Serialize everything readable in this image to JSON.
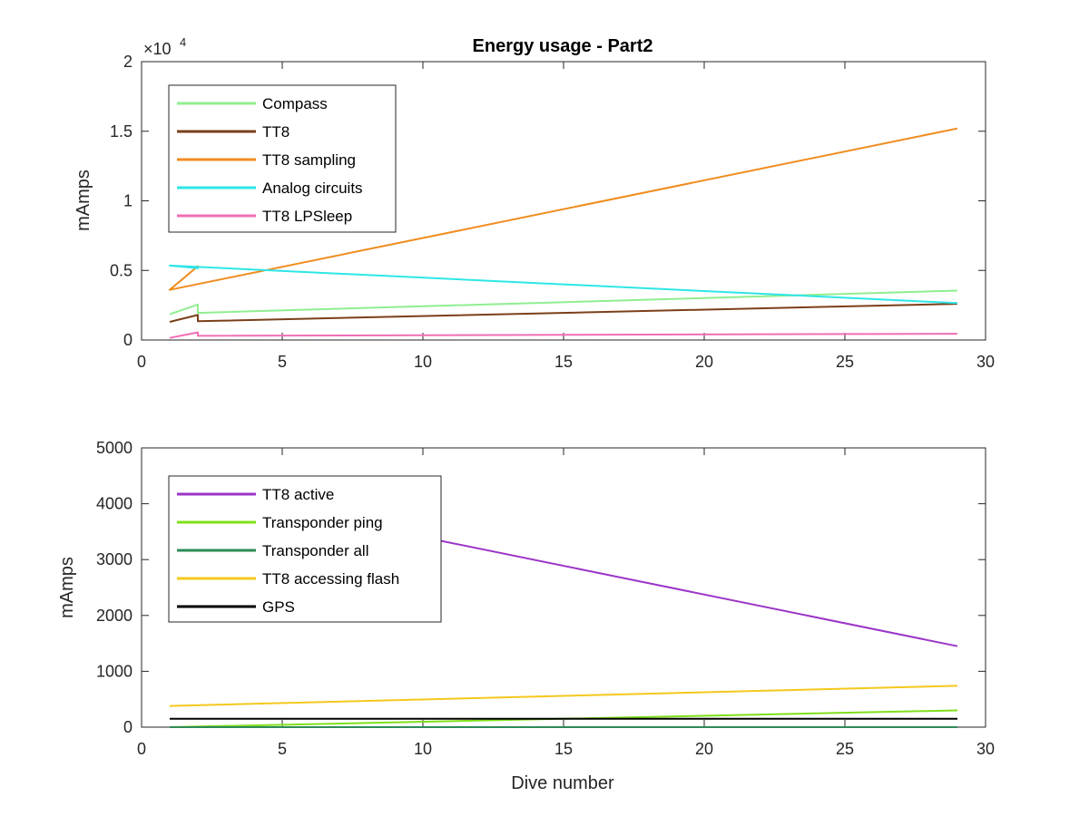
{
  "figure": {
    "title": "Energy usage - Part2",
    "xlabel": "Dive number",
    "exponent_label": "×10",
    "exponent_power": "4"
  },
  "chart_data": [
    {
      "type": "line",
      "title": "Energy usage - Part2",
      "xlabel": "",
      "ylabel": "mAmps",
      "xlim": [
        0,
        30
      ],
      "ylim": [
        0,
        20000
      ],
      "xticks": [
        0,
        5,
        10,
        15,
        20,
        25,
        30
      ],
      "xtick_labels": [
        "0",
        "5",
        "10",
        "15",
        "20",
        "25",
        "30"
      ],
      "yticks": [
        0,
        5000,
        10000,
        15000,
        20000
      ],
      "ytick_labels": [
        "0",
        "0.5",
        "1",
        "1.5",
        "2"
      ],
      "y_exponent": "×10^4",
      "grid": false,
      "legend_position": "top-left",
      "series": [
        {
          "name": "Compass",
          "color": "#90EE90",
          "points": [
            [
              1,
              1850
            ],
            [
              2,
              2550
            ],
            [
              2,
              1950
            ],
            [
              29,
              3550
            ]
          ]
        },
        {
          "name": "TT8",
          "color": "#7B3F1A",
          "points": [
            [
              1,
              1300
            ],
            [
              2,
              1800
            ],
            [
              2,
              1350
            ],
            [
              29,
              2600
            ]
          ]
        },
        {
          "name": "TT8 sampling",
          "color": "#F08C1E",
          "points": [
            [
              1,
              3600
            ],
            [
              2,
              5300
            ],
            [
              1,
              3600
            ],
            [
              29,
              15200
            ]
          ]
        },
        {
          "name": "Analog circuits",
          "color": "#2EE6E6",
          "points": [
            [
              1,
              5350
            ],
            [
              2,
              5150
            ],
            [
              1,
              5350
            ],
            [
              29,
              2650
            ]
          ]
        },
        {
          "name": "TT8 LPSleep",
          "color": "#F06EB4",
          "points": [
            [
              1,
              150
            ],
            [
              2,
              550
            ],
            [
              2,
              300
            ],
            [
              29,
              450
            ]
          ]
        }
      ]
    },
    {
      "type": "line",
      "title": "",
      "xlabel": "Dive number",
      "ylabel": "mAmps",
      "xlim": [
        0,
        30
      ],
      "ylim": [
        0,
        5000
      ],
      "xticks": [
        0,
        5,
        10,
        15,
        20,
        25,
        30
      ],
      "xtick_labels": [
        "0",
        "5",
        "10",
        "15",
        "20",
        "25",
        "30"
      ],
      "yticks": [
        0,
        1000,
        2000,
        3000,
        4000,
        5000
      ],
      "ytick_labels": [
        "0",
        "1000",
        "2000",
        "3000",
        "4000",
        "5000"
      ],
      "grid": false,
      "legend_position": "top-left",
      "series": [
        {
          "name": "TT8 active",
          "color": "#9B35C8",
          "points": [
            [
              10.5,
              3350
            ],
            [
              29,
              1450
            ]
          ]
        },
        {
          "name": "Transponder ping",
          "color": "#7FE01A",
          "points": [
            [
              1,
              0
            ],
            [
              29,
              300
            ]
          ]
        },
        {
          "name": "Transponder all",
          "color": "#2E8B57",
          "points": [
            [
              1,
              0
            ],
            [
              29,
              0
            ]
          ]
        },
        {
          "name": "TT8 accessing flash",
          "color": "#F5C81E",
          "points": [
            [
              1,
              380
            ],
            [
              29,
              740
            ]
          ]
        },
        {
          "name": "GPS",
          "color": "#000000",
          "points": [
            [
              1,
              150
            ],
            [
              29,
              150
            ]
          ]
        }
      ]
    }
  ]
}
